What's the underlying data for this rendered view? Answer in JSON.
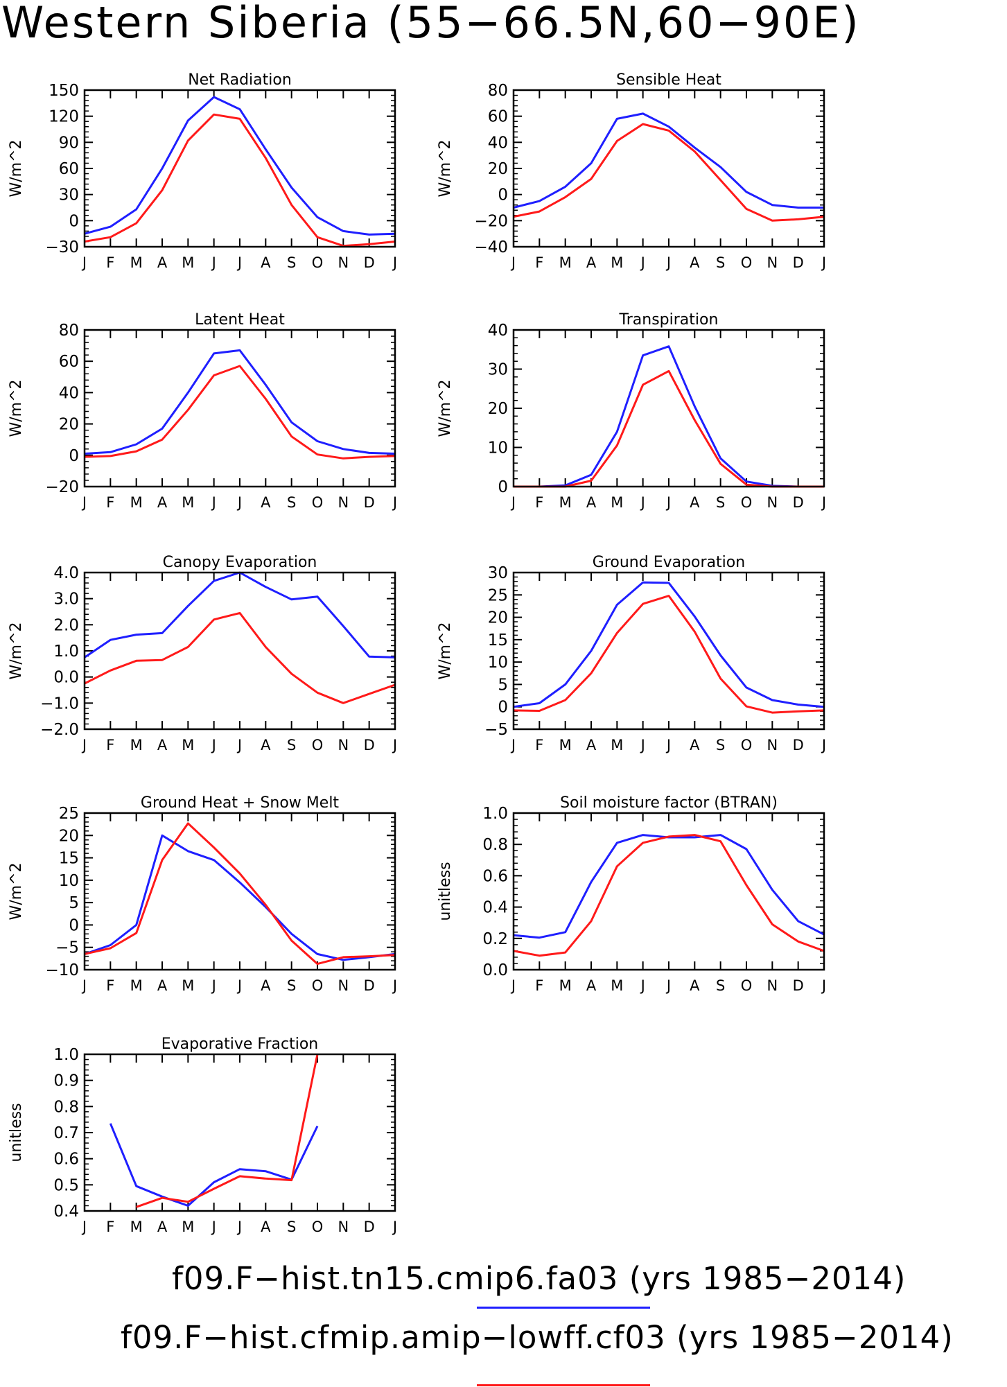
{
  "title": "Western Siberia (55−66.5N,60−90E)",
  "colors": {
    "series1": "#1f1fff",
    "series2": "#ff1a1a"
  },
  "legend": [
    {
      "text": "f09.F−hist.tn15.cmip6.fa03 (yrs 1985−2014)",
      "color": "#1f1fff"
    },
    {
      "text": "f09.F−hist.cfmip.amip−lowff.cf03 (yrs 1985−2014)",
      "color": "#ff1a1a"
    }
  ],
  "chart_data": [
    {
      "type": "line",
      "title": "Net Radiation",
      "ylabel": "W/m^2",
      "categories": [
        "J",
        "F",
        "M",
        "A",
        "M",
        "J",
        "J",
        "A",
        "S",
        "O",
        "N",
        "D",
        "J"
      ],
      "ylim": [
        -30,
        150
      ],
      "yticks": [
        "150",
        "120",
        "90",
        "60",
        "30",
        "0",
        "−30"
      ],
      "ytick_values": [
        150,
        120,
        90,
        60,
        30,
        0,
        -30
      ],
      "series": [
        {
          "values": [
            -15,
            -7,
            13,
            60,
            115,
            142,
            128,
            82,
            38,
            4,
            -12,
            -16,
            -15
          ]
        },
        {
          "values": [
            -24,
            -19,
            -3,
            35,
            92,
            122,
            117,
            72,
            18,
            -19,
            -29,
            -27,
            -24
          ]
        }
      ]
    },
    {
      "type": "line",
      "title": "Sensible Heat",
      "ylabel": "W/m^2",
      "categories": [
        "J",
        "F",
        "M",
        "A",
        "M",
        "J",
        "J",
        "A",
        "S",
        "O",
        "N",
        "D",
        "J"
      ],
      "ylim": [
        -40,
        80
      ],
      "yticks": [
        "80",
        "60",
        "40",
        "20",
        "0",
        "−20",
        "−40"
      ],
      "ytick_values": [
        80,
        60,
        40,
        20,
        0,
        -20,
        -40
      ],
      "series": [
        {
          "values": [
            -10,
            -5,
            6,
            24,
            58,
            62,
            52,
            36,
            21,
            2,
            -8,
            -10,
            -10
          ]
        },
        {
          "values": [
            -17,
            -13,
            -2,
            12,
            41,
            54,
            49,
            33,
            11,
            -11,
            -20,
            -19,
            -17
          ]
        }
      ]
    },
    {
      "type": "line",
      "title": "Latent Heat",
      "ylabel": "W/m^2",
      "categories": [
        "J",
        "F",
        "M",
        "A",
        "M",
        "J",
        "J",
        "A",
        "S",
        "O",
        "N",
        "D",
        "J"
      ],
      "ylim": [
        -20,
        80
      ],
      "yticks": [
        "80",
        "60",
        "40",
        "20",
        "0",
        "−20"
      ],
      "ytick_values": [
        80,
        60,
        40,
        20,
        0,
        -20
      ],
      "series": [
        {
          "values": [
            1,
            2,
            7,
            17,
            40,
            65,
            67,
            45,
            21,
            9,
            4,
            1.5,
            1
          ]
        },
        {
          "values": [
            -1,
            -0.5,
            2.5,
            10,
            29,
            51,
            57,
            36,
            12,
            0.5,
            -2,
            -1,
            -0.5
          ]
        }
      ]
    },
    {
      "type": "line",
      "title": "Transpiration",
      "ylabel": "W/m^2",
      "categories": [
        "J",
        "F",
        "M",
        "A",
        "M",
        "J",
        "J",
        "A",
        "S",
        "O",
        "N",
        "D",
        "J"
      ],
      "ylim": [
        0,
        40
      ],
      "yticks": [
        "40",
        "30",
        "20",
        "10",
        "0"
      ],
      "ytick_values": [
        40,
        30,
        20,
        10,
        0
      ],
      "series": [
        {
          "values": [
            0,
            0,
            0.3,
            3,
            14,
            33.5,
            35.8,
            20.5,
            7.2,
            1.3,
            0.2,
            0,
            0
          ]
        },
        {
          "values": [
            0,
            0,
            0,
            1.5,
            10.5,
            26,
            29.5,
            17,
            5.8,
            0.5,
            0,
            0,
            0
          ]
        }
      ]
    },
    {
      "type": "line",
      "title": "Canopy Evaporation",
      "ylabel": "W/m^2",
      "categories": [
        "J",
        "F",
        "M",
        "A",
        "M",
        "J",
        "J",
        "A",
        "S",
        "O",
        "N",
        "D",
        "J"
      ],
      "ylim": [
        -2,
        4
      ],
      "yticks": [
        "4.0",
        "3.0",
        "2.0",
        "1.0",
        "0.0",
        "−1.0",
        "−2.0"
      ],
      "ytick_values": [
        4,
        3,
        2,
        1,
        0,
        -1,
        -2
      ],
      "series": [
        {
          "values": [
            0.75,
            1.42,
            1.62,
            1.68,
            2.72,
            3.68,
            4.0,
            3.45,
            2.97,
            3.08,
            1.95,
            0.78,
            0.75
          ]
        },
        {
          "values": [
            -0.25,
            0.25,
            0.62,
            0.65,
            1.15,
            2.2,
            2.45,
            1.15,
            0.12,
            -0.6,
            -1.0,
            -0.65,
            -0.3
          ]
        }
      ]
    },
    {
      "type": "line",
      "title": "Ground Evaporation",
      "ylabel": "W/m^2",
      "categories": [
        "J",
        "F",
        "M",
        "A",
        "M",
        "J",
        "J",
        "A",
        "S",
        "O",
        "N",
        "D",
        "J"
      ],
      "ylim": [
        -5,
        30
      ],
      "yticks": [
        "30",
        "25",
        "20",
        "15",
        "10",
        "5",
        "0",
        "−5"
      ],
      "ytick_values": [
        30,
        25,
        20,
        15,
        10,
        5,
        0,
        -5
      ],
      "series": [
        {
          "values": [
            0,
            0.8,
            5,
            12.5,
            22.8,
            27.8,
            27.7,
            20.2,
            11.5,
            4.3,
            1.5,
            0.5,
            0
          ]
        },
        {
          "values": [
            -0.8,
            -0.9,
            1.5,
            7.5,
            16.5,
            23,
            24.8,
            16.8,
            6.3,
            0.1,
            -1.3,
            -1,
            -0.8
          ]
        }
      ]
    },
    {
      "type": "line",
      "title": "Ground Heat + Snow Melt",
      "ylabel": "W/m^2",
      "categories": [
        "J",
        "F",
        "M",
        "A",
        "M",
        "J",
        "J",
        "A",
        "S",
        "O",
        "N",
        "D",
        "J"
      ],
      "ylim": [
        -10,
        25
      ],
      "yticks": [
        "25",
        "20",
        "15",
        "10",
        "5",
        "0",
        "−5",
        "−10"
      ],
      "ytick_values": [
        25,
        20,
        15,
        10,
        5,
        0,
        -5,
        -10
      ],
      "series": [
        {
          "values": [
            -6.5,
            -4.5,
            0,
            20,
            16.5,
            14.5,
            9.5,
            4,
            -2,
            -6.5,
            -7.8,
            -7.2,
            -6.5
          ]
        },
        {
          "values": [
            -6.5,
            -5.2,
            -1.8,
            14.5,
            22.7,
            17.3,
            11.5,
            4.5,
            -3.5,
            -8.7,
            -7.2,
            -7,
            -6.7
          ]
        }
      ]
    },
    {
      "type": "line",
      "title": "Soil moisture factor (BTRAN)",
      "ylabel": "unitless",
      "categories": [
        "J",
        "F",
        "M",
        "A",
        "M",
        "J",
        "J",
        "A",
        "S",
        "O",
        "N",
        "D",
        "J"
      ],
      "ylim": [
        0,
        1
      ],
      "yticks": [
        "1.0",
        "0.8",
        "0.6",
        "0.4",
        "0.2",
        "0.0"
      ],
      "ytick_values": [
        1,
        0.8,
        0.6,
        0.4,
        0.2,
        0
      ],
      "series": [
        {
          "values": [
            0.22,
            0.205,
            0.24,
            0.56,
            0.81,
            0.86,
            0.845,
            0.845,
            0.86,
            0.77,
            0.51,
            0.31,
            0.225
          ]
        },
        {
          "values": [
            0.12,
            0.09,
            0.11,
            0.31,
            0.66,
            0.81,
            0.85,
            0.86,
            0.82,
            0.54,
            0.29,
            0.18,
            0.12
          ]
        }
      ]
    },
    {
      "type": "line",
      "title": "Evaporative Fraction",
      "ylabel": "unitless",
      "categories": [
        "J",
        "F",
        "M",
        "A",
        "M",
        "J",
        "J",
        "A",
        "S",
        "O",
        "N",
        "D",
        "J"
      ],
      "ylim": [
        0.4,
        1.0
      ],
      "yticks": [
        "1.0",
        "0.9",
        "0.8",
        "0.7",
        "0.6",
        "0.5",
        "0.4"
      ],
      "ytick_values": [
        1,
        0.9,
        0.8,
        0.7,
        0.6,
        0.5,
        0.4
      ],
      "series": [
        {
          "values": [
            null,
            0.735,
            0.495,
            0.455,
            0.42,
            0.51,
            0.56,
            0.552,
            0.52,
            0.725,
            null,
            null,
            null
          ]
        },
        {
          "values": [
            null,
            null,
            0.415,
            0.45,
            0.435,
            0.485,
            0.533,
            0.524,
            0.518,
            1.0,
            null,
            null,
            null
          ]
        }
      ]
    }
  ]
}
